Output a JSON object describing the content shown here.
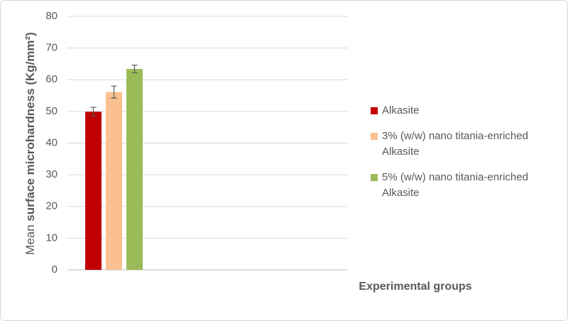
{
  "chart_data": {
    "type": "bar",
    "ylabel": [
      "Mean",
      "surface microhardness (Kg/mm²)"
    ],
    "xlabel": "Experimental groups",
    "categories": [
      null
    ],
    "series": [
      {
        "name": "Alkasite",
        "color": "#c00000",
        "values": [
          49.9
        ],
        "errors": [
          1.4
        ]
      },
      {
        "name": "3% (w/w) nano titania-enriched Alkasite",
        "color": "#fac090",
        "values": [
          56.1
        ],
        "errors": [
          1.9
        ]
      },
      {
        "name": "5% (w/w) nano titania-enriched Alkasite",
        "color": "#9bbb59",
        "values": [
          63.4
        ],
        "errors": [
          1.2
        ]
      }
    ],
    "ylim": [
      0,
      80
    ],
    "yticks": [
      0,
      10,
      20,
      30,
      40,
      50,
      60,
      70,
      80
    ],
    "grid": true,
    "legend": "right"
  }
}
